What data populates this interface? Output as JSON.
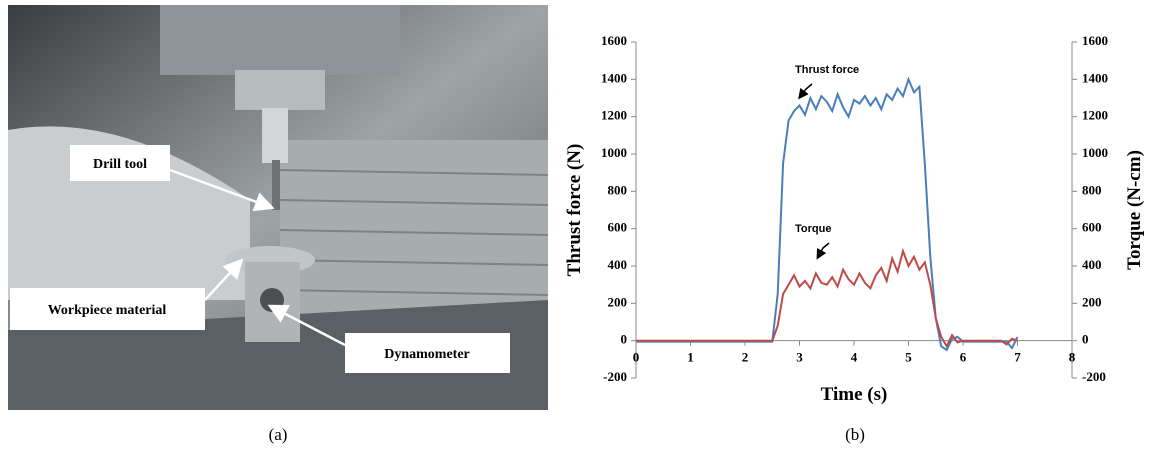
{
  "photo": {
    "labels": [
      "Drill tool",
      "Workpiece material",
      "Dynamometer"
    ]
  },
  "captions": [
    "(a)",
    "(b)"
  ],
  "chart_data": {
    "type": "line",
    "x_label": "Time (s)",
    "y_label": "Thrust force (N)",
    "y2_label": "Torque (N-cm)",
    "annotations": [
      "Thrust force",
      "Torque"
    ],
    "x": [
      0,
      0.1,
      0.2,
      0.3,
      0.4,
      0.5,
      0.6,
      0.7,
      0.8,
      0.9,
      1,
      1.1,
      1.2,
      1.3,
      1.4,
      1.5,
      1.6,
      1.7,
      1.8,
      1.9,
      2,
      2.1,
      2.2,
      2.3,
      2.4,
      2.5,
      2.6,
      2.7,
      2.8,
      2.9,
      3,
      3.1,
      3.2,
      3.3,
      3.4,
      3.5,
      3.6,
      3.7,
      3.8,
      3.9,
      4,
      4.1,
      4.2,
      4.3,
      4.4,
      4.5,
      4.6,
      4.7,
      4.8,
      4.9,
      5,
      5.1,
      5.2,
      5.3,
      5.4,
      5.5,
      5.6,
      5.7,
      5.8,
      5.9,
      6,
      6.1,
      6.2,
      6.3,
      6.4,
      6.5,
      6.6,
      6.7,
      6.8,
      6.9,
      7
    ],
    "series": [
      {
        "name": "Thrust force",
        "color": "#4a7ebb",
        "values": [
          -5,
          -5,
          -5,
          -5,
          -5,
          -5,
          -5,
          -5,
          -5,
          -5,
          -5,
          -5,
          -5,
          -5,
          -5,
          -5,
          -5,
          -5,
          -5,
          -5,
          -5,
          -5,
          -5,
          -5,
          -5,
          -5,
          250,
          950,
          1180,
          1230,
          1260,
          1210,
          1300,
          1240,
          1310,
          1280,
          1230,
          1320,
          1250,
          1200,
          1290,
          1270,
          1310,
          1260,
          1300,
          1240,
          1320,
          1290,
          1350,
          1310,
          1400,
          1330,
          1360,
          950,
          450,
          120,
          -30,
          -50,
          10,
          20,
          -5,
          -5,
          -5,
          -5,
          -5,
          -5,
          -5,
          -5,
          -5,
          -40,
          20
        ]
      },
      {
        "name": "Torque",
        "color": "#be4b48",
        "axis": "y2",
        "values": [
          0,
          0,
          0,
          0,
          0,
          0,
          0,
          0,
          0,
          0,
          0,
          0,
          0,
          0,
          0,
          0,
          0,
          0,
          0,
          0,
          0,
          0,
          0,
          0,
          0,
          0,
          80,
          250,
          300,
          350,
          290,
          320,
          280,
          360,
          310,
          300,
          340,
          290,
          380,
          330,
          300,
          360,
          310,
          280,
          350,
          390,
          320,
          440,
          370,
          480,
          400,
          450,
          380,
          420,
          300,
          120,
          20,
          -30,
          30,
          -10,
          0,
          0,
          0,
          0,
          0,
          0,
          0,
          0,
          -20,
          10,
          0
        ]
      }
    ],
    "xlim": [
      0,
      8
    ],
    "xticks": [
      0,
      1,
      2,
      3,
      4,
      5,
      6,
      7,
      8
    ],
    "ylim": [
      -200,
      1600
    ],
    "yticks": [
      -200,
      0,
      200,
      400,
      600,
      800,
      1000,
      1200,
      1400,
      1600
    ],
    "y2lim": [
      -200,
      1600
    ],
    "y2ticks": [
      -200,
      0,
      200,
      400,
      600,
      800,
      1000,
      1200,
      1400,
      1600
    ]
  }
}
